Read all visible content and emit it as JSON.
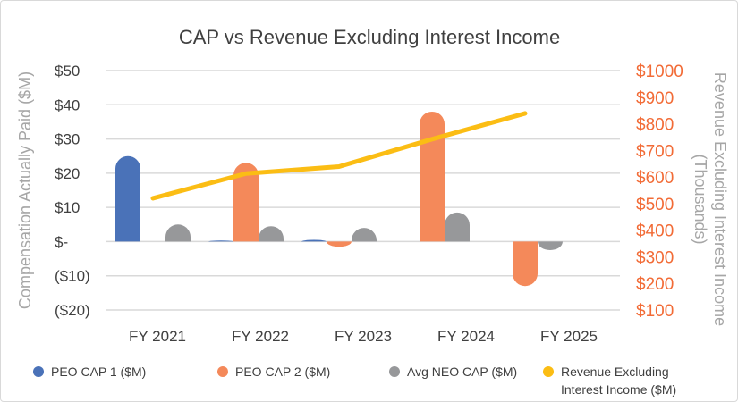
{
  "chart_data": {
    "type": "bar",
    "title": "CAP vs Revenue Excluding Interest Income",
    "ylabel": "Compensation Actually Paid ($M)",
    "y2label": [
      "Revenue Excluding Interest Income",
      "(Thousands)"
    ],
    "categories": [
      "FY 2021",
      "FY 2022",
      "FY 2023",
      "FY 2024",
      "FY 2025"
    ],
    "ylim": [
      -20,
      50
    ],
    "yticks": [
      "$50",
      "$40",
      "$30",
      "$20",
      "$10",
      "$-",
      "($10)",
      "($20)"
    ],
    "y2lim": [
      100,
      1000
    ],
    "y2ticks": [
      "$1000",
      "$900",
      "$800",
      "$700",
      "$600",
      "$500",
      "$400",
      "$300",
      "$200",
      "$100"
    ],
    "grid": true,
    "legend_position": "bottom",
    "series": [
      {
        "name": "PEO CAP 1 ($M)",
        "type": "bar",
        "color": "#4a72b8",
        "values": [
          25,
          0.3,
          0.5,
          0,
          0
        ]
      },
      {
        "name": "PEO CAP 2 ($M)",
        "type": "bar",
        "color": "#f4895a",
        "values": [
          0,
          23,
          -1.5,
          38,
          -13
        ]
      },
      {
        "name": "Avg NEO CAP ($M)",
        "type": "bar",
        "color": "#97989a",
        "values": [
          5,
          4.5,
          4,
          8.5,
          -2.5
        ]
      },
      {
        "name": "Revenue Excluding Interest Income ($M)",
        "type": "line",
        "axis": "right",
        "color": "#fbbd14",
        "values": [
          520,
          613,
          639,
          742,
          839
        ]
      }
    ],
    "legend": [
      "PEO CAP 1 ($M)",
      "PEO CAP 2 ($M)",
      "Avg NEO CAP ($M)",
      "Revenue Excluding",
      "Interest Income ($M)"
    ]
  }
}
